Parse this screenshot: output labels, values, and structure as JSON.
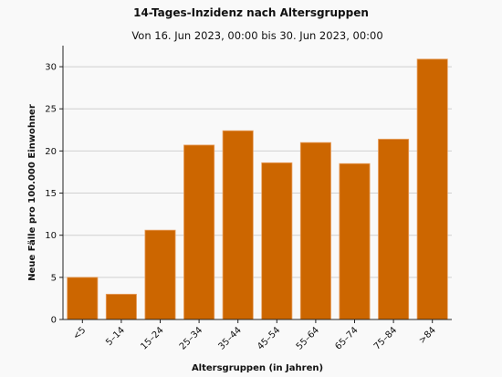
{
  "chart_data": {
    "type": "bar",
    "title": "14-Tages-Inzidenz nach Altersgruppen",
    "subtitle": "Von 16. Jun 2023, 00:00 bis 30. Jun 2023, 00:00",
    "xlabel": "Altersgruppen (in Jahren)",
    "ylabel": "Neue Fälle pro 100.000 Einwohner",
    "categories": [
      "<5",
      "5–14",
      "15–24",
      "25–34",
      "35–44",
      "45–54",
      "55–64",
      "65–74",
      "75–84",
      ">84"
    ],
    "values": [
      5.0,
      3.0,
      10.6,
      20.7,
      22.4,
      18.6,
      21.0,
      18.5,
      21.4,
      30.9
    ],
    "ylim": [
      0,
      32.5
    ],
    "yticks": [
      0,
      5,
      10,
      15,
      20,
      25,
      30
    ],
    "grid": true,
    "bar_color": "#cc6600",
    "bar_edge_color": "#e8a060"
  }
}
